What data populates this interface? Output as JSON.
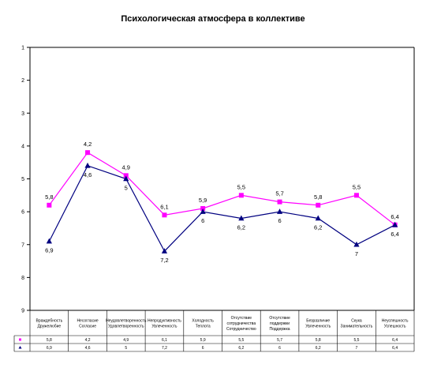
{
  "chart_data": {
    "type": "line",
    "title": "Психологическая атмосфера в коллективе",
    "xlabel": "",
    "ylabel": "",
    "y_reversed": true,
    "ylim": [
      1,
      9
    ],
    "yticks": [
      "1",
      "2",
      "3",
      "4",
      "5",
      "6",
      "7",
      "8",
      "9"
    ],
    "grid": false,
    "legend": "none",
    "categories": [
      [
        "Враждебность",
        "Дружелюбие"
      ],
      [
        "Несогласие",
        "Согласие"
      ],
      [
        "Неудовлетворенность",
        "Удовлетворенность"
      ],
      [
        "Непродуктивность",
        "Увлеченность"
      ],
      [
        "Холодность",
        "Теплота"
      ],
      [
        "Отсутствие",
        "сотрудничества",
        "Сотрудничество"
      ],
      [
        "Отсутствие",
        "поддержки",
        "Поддержка"
      ],
      [
        "Безразличие",
        "Увлеченность"
      ],
      [
        "Скука",
        "Занимательность"
      ],
      [
        "Неуспешность",
        "Успешность"
      ]
    ],
    "series": [
      {
        "color": "#ff00ff",
        "marker": "square",
        "values": [
          5.8,
          4.2,
          4.9,
          6.1,
          5.9,
          5.5,
          5.7,
          5.8,
          5.5,
          6.4
        ],
        "labels": [
          "5,8",
          "4,2",
          "4,9",
          "6,1",
          "5,9",
          "5,5",
          "5,7",
          "5,8",
          "5,5",
          "6,4"
        ],
        "label_position": "above"
      },
      {
        "color": "#000080",
        "marker": "triangle",
        "values": [
          6.9,
          4.6,
          5.0,
          7.2,
          6.0,
          6.2,
          6.0,
          6.2,
          7.0,
          6.4
        ],
        "labels": [
          "6,9",
          "4,6",
          "5",
          "7,2",
          "6",
          "6,2",
          "6",
          "6,2",
          "7",
          "6,4"
        ],
        "label_position": "below"
      }
    ],
    "table_rows": [
      [
        "5,8",
        "4,2",
        "4,9",
        "6,1",
        "5,9",
        "5,5",
        "5,7",
        "5,8",
        "5,5",
        "6,4"
      ],
      [
        "6,9",
        "4,6",
        "5",
        "7,2",
        "6",
        "6,2",
        "6",
        "6,2",
        "7",
        "6,4"
      ]
    ]
  }
}
